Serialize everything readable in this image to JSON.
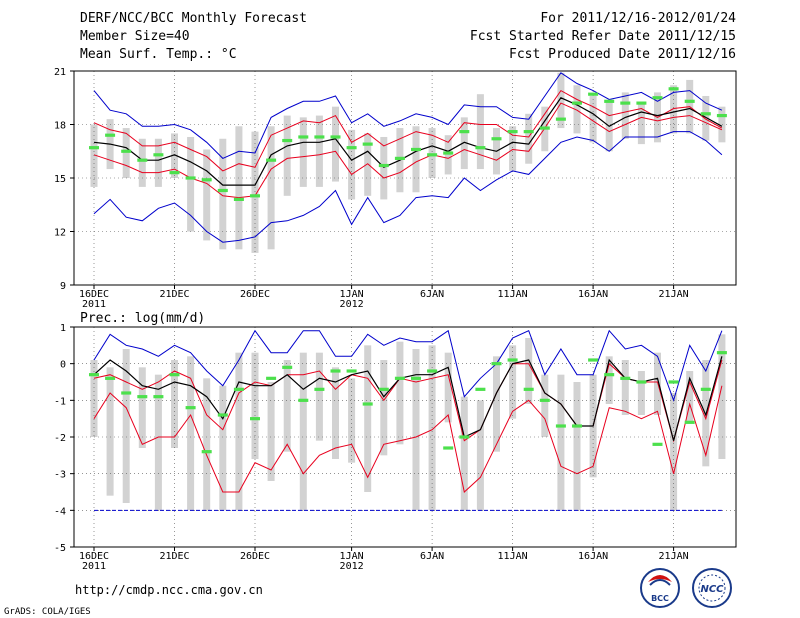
{
  "header": {
    "title": "DERF/NCC/BCC Monthly Forecast",
    "member_size": "Member Size=40",
    "variable1": "Mean Surf. Temp.: °C",
    "for_range": "For 2011/12/16-2012/01/24",
    "started": "Fcst Started Refer Date 2011/12/15",
    "produced": "Fcst Produced Date 2011/12/16"
  },
  "footer": {
    "url": "http://cmdp.ncc.cma.gov.cn",
    "grads": "GrADS: COLA/IGES",
    "logo_bcc": "BCC",
    "logo_ncc": "NCC"
  },
  "colors": {
    "ensemble_mean": "#000000",
    "spread": "#e8001e",
    "extreme": "#0000cc",
    "members_box": "#d2d2d2",
    "climatology": "#4ce04c"
  },
  "chart_data": [
    {
      "type": "line",
      "title": "Mean Surf. Temp.: °C",
      "x_tick_labels": [
        "16DEC",
        "21DEC",
        "26DEC",
        "1JAN",
        "6JAN",
        "11JAN",
        "16JAN",
        "21JAN"
      ],
      "x_tick_days": [
        1,
        6,
        11,
        17,
        22,
        27,
        32,
        37
      ],
      "x_year_labels": [
        {
          "day": 1,
          "label": "2011"
        },
        {
          "day": 17,
          "label": "2012"
        }
      ],
      "xlim": [
        1,
        40
      ],
      "ylim": [
        9,
        21
      ],
      "y_ticks": [
        9,
        12,
        15,
        18,
        21
      ],
      "grid": true,
      "series": [
        {
          "name": "max",
          "values": [
            19.9,
            18.8,
            18.6,
            17.9,
            17.9,
            18.0,
            17.7,
            17.0,
            16.1,
            16.5,
            16.4,
            18.4,
            18.9,
            19.3,
            19.3,
            19.6,
            18.1,
            18.6,
            17.9,
            18.2,
            18.6,
            18.4,
            18.0,
            19.1,
            19.0,
            19.0,
            18.4,
            18.3,
            19.6,
            20.9,
            20.3,
            19.9,
            19.4,
            19.6,
            19.8,
            19.3,
            19.8,
            19.9,
            19.2,
            18.8
          ]
        },
        {
          "name": "upper",
          "values": [
            18.1,
            17.7,
            17.5,
            16.8,
            16.8,
            17.0,
            16.6,
            16.2,
            15.4,
            15.8,
            15.6,
            17.4,
            17.8,
            18.2,
            18.1,
            18.5,
            17.0,
            17.5,
            16.8,
            17.2,
            17.6,
            17.4,
            17.0,
            18.1,
            18.0,
            18.0,
            17.4,
            17.3,
            18.6,
            19.9,
            19.4,
            19.0,
            18.5,
            18.7,
            18.9,
            18.4,
            18.9,
            19.0,
            18.3,
            17.8
          ]
        },
        {
          "name": "mean",
          "values": [
            17.0,
            16.9,
            16.7,
            16.0,
            16.0,
            16.3,
            15.9,
            15.4,
            14.6,
            14.6,
            14.6,
            16.3,
            16.8,
            17.0,
            17.0,
            17.2,
            16.0,
            16.5,
            15.6,
            16.0,
            16.5,
            16.8,
            16.5,
            17.0,
            16.7,
            16.5,
            17.0,
            16.9,
            18.2,
            19.5,
            19.1,
            18.6,
            17.9,
            18.4,
            18.7,
            18.5,
            18.7,
            18.9,
            18.4,
            17.9
          ]
        },
        {
          "name": "lower",
          "values": [
            16.3,
            16.0,
            15.7,
            15.3,
            15.3,
            15.5,
            15.0,
            14.7,
            14.0,
            13.9,
            14.0,
            15.5,
            16.1,
            16.2,
            16.3,
            16.5,
            15.2,
            15.8,
            15.0,
            15.3,
            15.9,
            16.3,
            16.1,
            16.6,
            16.3,
            16.0,
            16.6,
            16.5,
            17.8,
            19.2,
            18.8,
            18.2,
            17.6,
            18.0,
            18.4,
            18.2,
            18.4,
            18.5,
            18.1,
            17.7
          ]
        },
        {
          "name": "min",
          "values": [
            13.0,
            13.8,
            12.8,
            12.6,
            13.3,
            13.6,
            12.9,
            12.0,
            11.4,
            11.5,
            11.7,
            12.5,
            12.6,
            12.9,
            13.4,
            14.3,
            12.4,
            13.9,
            12.5,
            12.9,
            13.9,
            14.0,
            13.9,
            15.0,
            14.3,
            14.9,
            15.4,
            15.2,
            16.1,
            17.0,
            17.3,
            17.1,
            16.5,
            17.3,
            17.3,
            17.3,
            17.6,
            17.6,
            17.1,
            16.3
          ]
        },
        {
          "name": "members_top",
          "values": [
            18.0,
            18.3,
            17.8,
            17.2,
            17.2,
            17.5,
            17.3,
            16.6,
            17.2,
            17.9,
            17.6,
            17.9,
            18.5,
            18.4,
            18.5,
            19.0,
            17.7,
            17.5,
            17.3,
            17.8,
            17.9,
            17.8,
            17.4,
            18.4,
            19.7,
            17.8,
            17.9,
            18.6,
            19.0,
            20.9,
            20.2,
            19.6,
            19.3,
            19.8,
            19.2,
            19.8,
            20.2,
            20.5,
            19.6,
            19.0
          ]
        },
        {
          "name": "members_bottom",
          "values": [
            14.5,
            15.5,
            15.0,
            14.5,
            14.5,
            15.0,
            12.0,
            11.5,
            11.0,
            11.0,
            10.8,
            11.0,
            14.0,
            14.5,
            14.5,
            14.8,
            13.8,
            14.0,
            13.8,
            14.2,
            14.2,
            15.0,
            15.2,
            15.5,
            15.5,
            15.2,
            15.4,
            15.8,
            16.5,
            17.8,
            17.5,
            17.0,
            16.5,
            17.2,
            16.9,
            17.0,
            17.5,
            17.5,
            17.1,
            17.0
          ]
        },
        {
          "name": "climatology",
          "values": [
            16.7,
            17.4,
            16.5,
            16.0,
            16.3,
            15.3,
            15.0,
            14.9,
            14.3,
            13.8,
            14.0,
            16.0,
            17.1,
            17.3,
            17.3,
            17.3,
            16.7,
            16.9,
            15.7,
            16.1,
            16.6,
            16.3,
            16.4,
            17.6,
            16.7,
            17.2,
            17.6,
            17.6,
            17.8,
            18.3,
            19.2,
            19.7,
            19.3,
            19.2,
            19.2,
            19.5,
            20.0,
            19.3,
            18.6,
            18.5
          ]
        }
      ]
    },
    {
      "type": "line",
      "title": "Prec.: log(mm/d)",
      "x_tick_labels": [
        "16DEC",
        "21DEC",
        "26DEC",
        "1JAN",
        "6JAN",
        "11JAN",
        "16JAN",
        "21JAN"
      ],
      "x_tick_days": [
        1,
        6,
        11,
        17,
        22,
        27,
        32,
        37
      ],
      "x_year_labels": [
        {
          "day": 1,
          "label": "2011"
        },
        {
          "day": 17,
          "label": "2012"
        }
      ],
      "xlim": [
        1,
        40
      ],
      "ylim": [
        -5,
        1
      ],
      "y_ticks": [
        -5,
        -4,
        -3,
        -2,
        -1,
        0,
        1
      ],
      "grid": true,
      "baseline": -4,
      "series": [
        {
          "name": "max",
          "values": [
            0.1,
            0.8,
            0.5,
            0.4,
            0.2,
            0.5,
            0.3,
            -0.2,
            -0.6,
            0.1,
            0.9,
            0.3,
            0.3,
            0.9,
            0.9,
            0.2,
            0.2,
            0.8,
            0.5,
            0.7,
            0.6,
            0.6,
            0.9,
            -0.9,
            -0.4,
            0.0,
            0.7,
            0.9,
            -0.3,
            0.4,
            -0.3,
            -0.3,
            0.9,
            0.4,
            0.5,
            0.2,
            -1.0,
            0.5,
            -0.2,
            0.9
          ]
        },
        {
          "name": "upper",
          "values": [
            -0.4,
            -0.3,
            -0.5,
            -0.7,
            -0.5,
            -0.2,
            -0.4,
            -1.4,
            -1.8,
            -0.8,
            -0.5,
            -0.6,
            -0.3,
            -0.3,
            -0.2,
            -0.7,
            -0.3,
            -0.4,
            -1.0,
            -0.4,
            -0.5,
            -0.4,
            -0.3,
            -2.1,
            -1.8,
            -0.8,
            0.0,
            0.0,
            -0.8,
            -1.1,
            -1.7,
            -1.7,
            0.0,
            -0.4,
            -0.5,
            -0.5,
            -2.1,
            -0.5,
            -1.5,
            0.1
          ]
        },
        {
          "name": "mean",
          "values": [
            -0.3,
            0.1,
            -0.2,
            -0.6,
            -0.7,
            -0.5,
            -0.6,
            -0.9,
            -1.5,
            -0.5,
            -0.6,
            -0.6,
            -0.3,
            -0.7,
            -0.4,
            -0.5,
            -0.3,
            -0.2,
            -0.9,
            -0.4,
            -0.3,
            -0.3,
            -0.1,
            -2.0,
            -1.8,
            -0.8,
            0.0,
            0.1,
            -0.8,
            -1.1,
            -1.7,
            -1.7,
            0.1,
            -0.4,
            -0.5,
            -0.4,
            -2.1,
            -0.4,
            -1.4,
            0.2
          ]
        },
        {
          "name": "lower",
          "values": [
            -1.5,
            -0.8,
            -1.2,
            -2.2,
            -2.0,
            -2.0,
            -1.4,
            -2.5,
            -3.5,
            -3.5,
            -2.7,
            -2.9,
            -2.2,
            -3.0,
            -2.5,
            -2.3,
            -2.2,
            -3.1,
            -2.2,
            -2.1,
            -2.0,
            -1.8,
            -1.4,
            -3.5,
            -3.1,
            -2.2,
            -1.3,
            -1.0,
            -1.5,
            -2.8,
            -3.0,
            -2.8,
            -1.2,
            -1.3,
            -1.5,
            -1.3,
            -3.0,
            -1.1,
            -2.5,
            -0.6
          ]
        },
        {
          "name": "min",
          "values": [
            -4.0,
            -4.0,
            -4.0,
            -4.0,
            -4.0,
            -4.0,
            -4.0,
            -4.0,
            -4.0,
            -4.0,
            -4.0,
            -4.0,
            -4.0,
            -4.0,
            -4.0,
            -4.0,
            -4.0,
            -4.0,
            -4.0,
            -4.0,
            -4.0,
            -4.0,
            -4.0,
            -4.0,
            -4.0,
            -4.0,
            -4.0,
            -4.0,
            -4.0,
            -4.0,
            -4.0,
            -4.0,
            -4.0,
            -4.0,
            -4.0,
            -4.0,
            -4.0,
            -4.0,
            -4.0,
            -4.0
          ]
        },
        {
          "name": "members_top",
          "values": [
            0.1,
            -0.1,
            0.4,
            -0.1,
            -0.3,
            0.1,
            0.2,
            -0.4,
            -0.6,
            0.3,
            0.3,
            -0.5,
            0.1,
            0.3,
            0.3,
            -0.1,
            -0.4,
            0.5,
            0.1,
            0.6,
            0.4,
            0.5,
            0.3,
            -0.9,
            -1.0,
            0.2,
            0.5,
            0.7,
            -0.3,
            -0.3,
            -0.5,
            -0.3,
            0.2,
            0.1,
            -0.2,
            0.3,
            -0.8,
            -0.2,
            0.1,
            0.8
          ]
        },
        {
          "name": "members_bottom",
          "values": [
            -2.0,
            -3.6,
            -3.8,
            -2.3,
            -4.0,
            -2.3,
            -4.0,
            -4.0,
            -4.0,
            -4.0,
            -2.6,
            -3.2,
            -2.4,
            -4.0,
            -2.1,
            -2.6,
            -2.7,
            -3.5,
            -2.5,
            -2.2,
            -4.0,
            -4.0,
            -1.6,
            -4.0,
            -4.0,
            -2.4,
            -1.5,
            -1.1,
            -2.0,
            -4.0,
            -4.0,
            -3.1,
            -1.1,
            -1.4,
            -1.4,
            -1.4,
            -4.0,
            -1.6,
            -2.8,
            -2.6
          ]
        },
        {
          "name": "climatology",
          "values": [
            -0.3,
            -0.4,
            -0.8,
            -0.9,
            -0.9,
            -0.3,
            -1.2,
            -2.4,
            -1.4,
            -0.7,
            -1.5,
            -0.4,
            -0.1,
            -1.0,
            -0.7,
            -0.2,
            -0.2,
            -1.1,
            -0.7,
            -0.4,
            -0.4,
            -0.2,
            -2.3,
            -2.0,
            -0.7,
            0.0,
            0.1,
            -0.7,
            -1.0,
            -1.7,
            -1.7,
            0.1,
            -0.3,
            -0.4,
            -0.5,
            -2.2,
            -0.5,
            -1.6,
            -0.7,
            0.3
          ]
        }
      ]
    }
  ]
}
